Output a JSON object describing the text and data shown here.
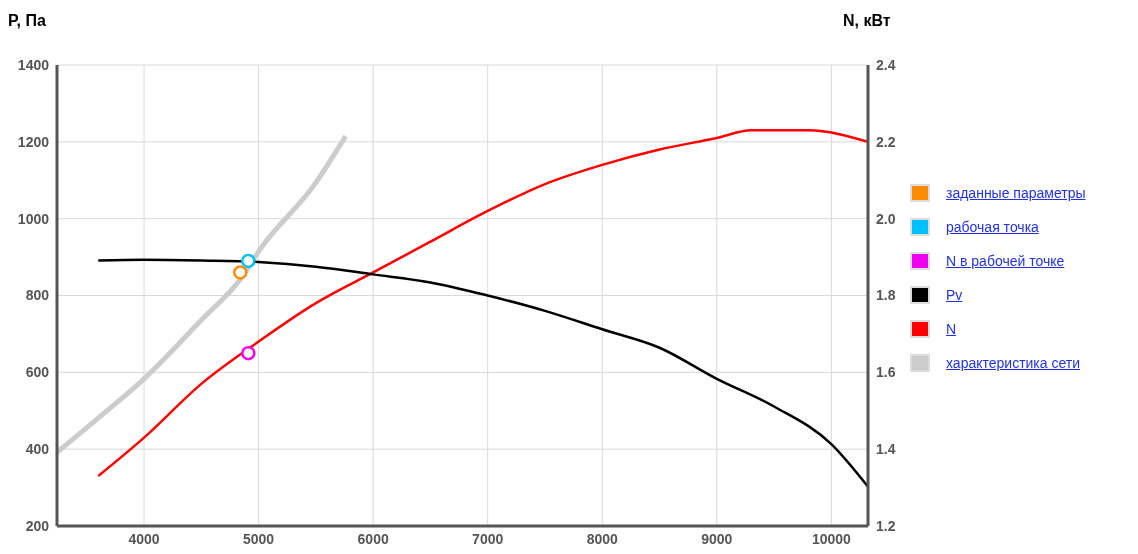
{
  "chart_data": {
    "type": "line",
    "ylabel": "P, Па",
    "y2label": "N, кВт",
    "xlim": [
      3240,
      10320
    ],
    "xticks": [
      4000,
      5000,
      6000,
      7000,
      8000,
      9000,
      10000
    ],
    "ylim": [
      200,
      1400
    ],
    "yticks": [
      200,
      400,
      600,
      800,
      1000,
      1200,
      1400
    ],
    "y2lim": [
      1.2,
      2.4
    ],
    "y2ticks": [
      {
        "value": 1.2,
        "label": "1.2"
      },
      {
        "value": 1.4,
        "label": "1.4"
      },
      {
        "value": 1.6,
        "label": "1.6"
      },
      {
        "value": 1.8,
        "label": "1.8"
      },
      {
        "value": 2,
        "label": "2.0"
      },
      {
        "value": 2.2,
        "label": "2.2"
      },
      {
        "value": 2.4,
        "label": "2.4"
      }
    ],
    "grid": true,
    "legend": "right",
    "series": [
      {
        "name": "заданные параметры",
        "type": "scatter",
        "marker": "circle",
        "color": "#ff8c00",
        "x": [
          4840
        ],
        "values": [
          860
        ]
      },
      {
        "name": "рабочая точка",
        "type": "scatter",
        "marker": "circle",
        "color": "#00bfff",
        "x": [
          4910
        ],
        "values": [
          890
        ]
      },
      {
        "name": "N в рабочей точке",
        "type": "scatter",
        "marker": "circle",
        "color": "#ee00ee",
        "axis": "y2",
        "x": [
          4910
        ],
        "values": [
          1.65
        ]
      },
      {
        "name": "Pv",
        "color": "#000000",
        "x": [
          3600,
          4000,
          4500,
          5000,
          5500,
          6000,
          6500,
          7000,
          7500,
          8000,
          8500,
          9000,
          9500,
          10000,
          10320
        ],
        "values": [
          891,
          893,
          891,
          887,
          875,
          855,
          834,
          800,
          760,
          712,
          664,
          583,
          511,
          413,
          302
        ]
      },
      {
        "name": "N",
        "color": "#ff0000",
        "axis": "y2",
        "x": [
          3600,
          4000,
          4500,
          5000,
          5500,
          6000,
          6500,
          7000,
          7500,
          8000,
          8500,
          9000,
          9300,
          9800,
          10320
        ],
        "values": [
          1.33,
          1.43,
          1.57,
          1.68,
          1.78,
          1.86,
          1.94,
          2.02,
          2.09,
          2.14,
          2.18,
          2.21,
          2.23,
          2.23,
          2.2
        ]
      },
      {
        "name": "характеристика сети",
        "color": "#cccccc",
        "x": [
          3240,
          3600,
          4000,
          4500,
          4850,
          5000,
          5500,
          5760
        ],
        "values": [
          392,
          481,
          583,
          736,
          846,
          915,
          1094,
          1215
        ]
      }
    ]
  }
}
